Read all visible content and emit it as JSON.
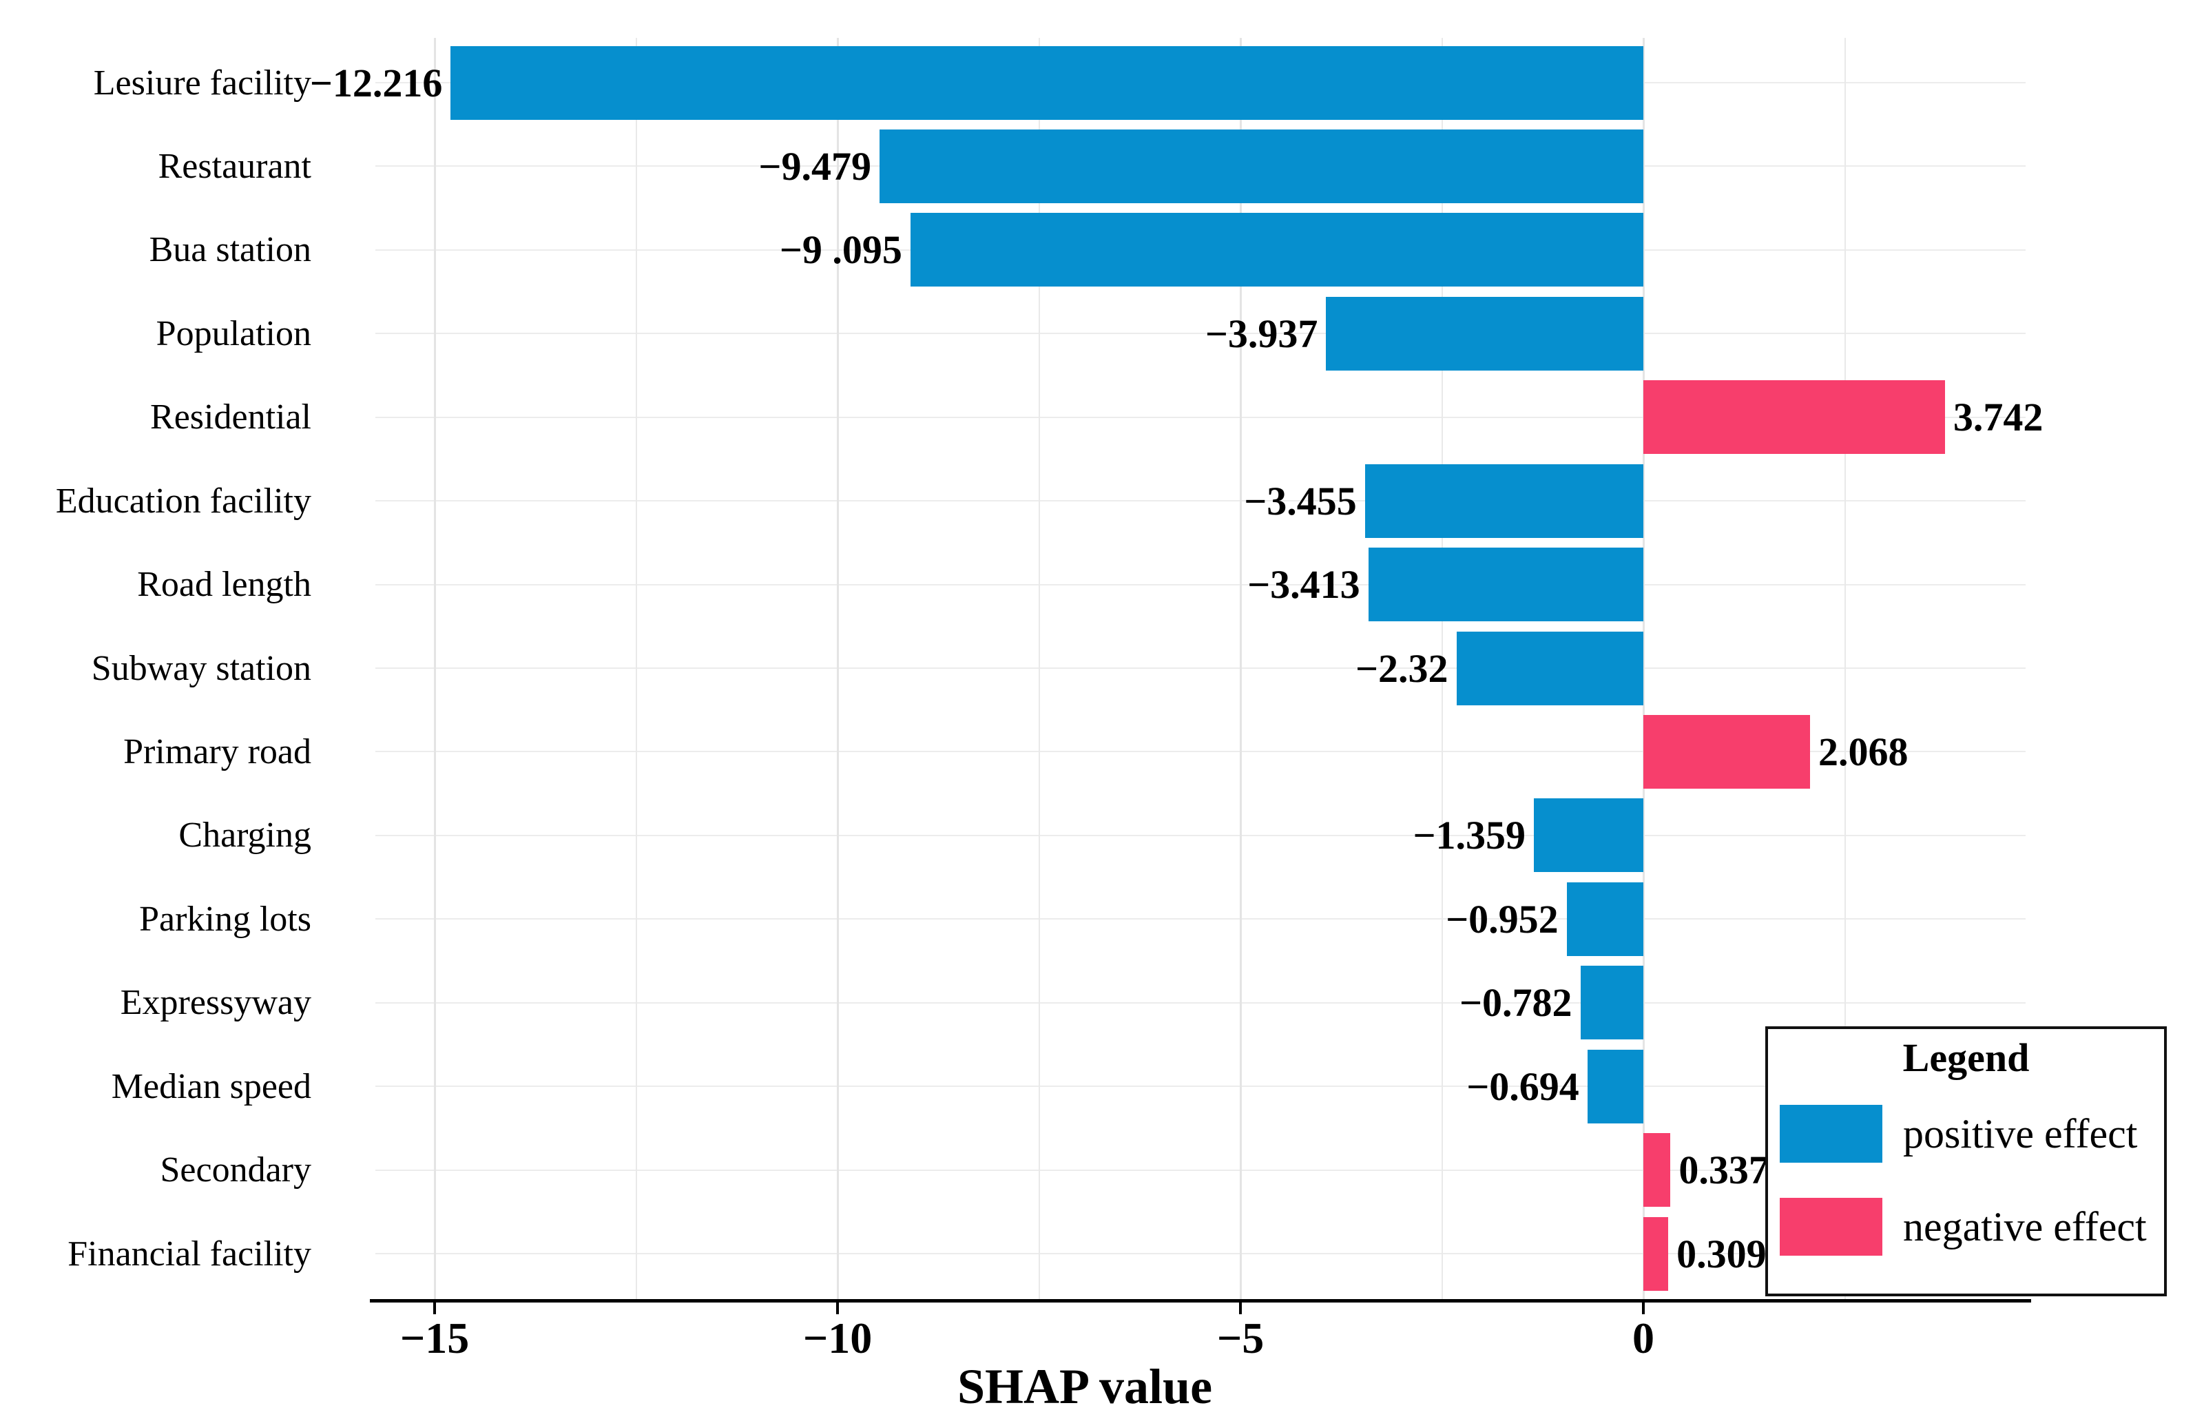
{
  "figure": {
    "background_color": "#ffffff",
    "x_axis": {
      "label": "SHAP value",
      "ticks": [
        {
          "value": -15,
          "label": "−15"
        },
        {
          "value": -10,
          "label": "−10"
        },
        {
          "value": -5,
          "label": "−5"
        },
        {
          "value": 0,
          "label": "0"
        }
      ],
      "minor_gridline_values": [
        -12.5,
        -7.5,
        -2.5,
        2.5
      ]
    },
    "legend": {
      "title": "Legend",
      "items": [
        {
          "label": "positive effect",
          "color": "#068FCE"
        },
        {
          "label": "negative effect",
          "color": "#F73E6C"
        }
      ]
    }
  },
  "chart_data": {
    "type": "bar",
    "orientation": "horizontal",
    "title": "",
    "xlabel": "SHAP value",
    "ylabel": "",
    "xlim": [
      -15.75,
      4.75
    ],
    "grid": true,
    "legend_position": "bottom-right",
    "positive_bar_color": "#F73E6C",
    "negative_bar_color": "#068FCE",
    "color_rule": "bars with negative SHAP value are blue, bars with positive SHAP value are pink",
    "categories": [
      "Lesiure facility",
      "Restaurant",
      "Bua station",
      "Population",
      "Residential",
      "Education facility",
      "Road length",
      "Subway station",
      "Primary road",
      "Charging",
      "Parking lots",
      "Expressyway",
      "Median speed",
      "Secondary",
      "Financial facility"
    ],
    "values": [
      -12.216,
      -9.479,
      -9.095,
      -3.937,
      3.742,
      -3.455,
      -3.413,
      -2.32,
      2.068,
      -1.359,
      -0.952,
      -0.782,
      -0.694,
      0.337,
      0.309
    ],
    "value_labels": [
      "−12.216",
      "−9.479",
      "−9 .095",
      "−3.937",
      "3.742",
      "−3.455",
      "−3.413",
      "−2.32",
      "2.068",
      "−1.359",
      "−0.952",
      "−0.782",
      "−0.694",
      "0.337",
      "0.309"
    ],
    "first_bar_drawn_extent": -14.8
  }
}
